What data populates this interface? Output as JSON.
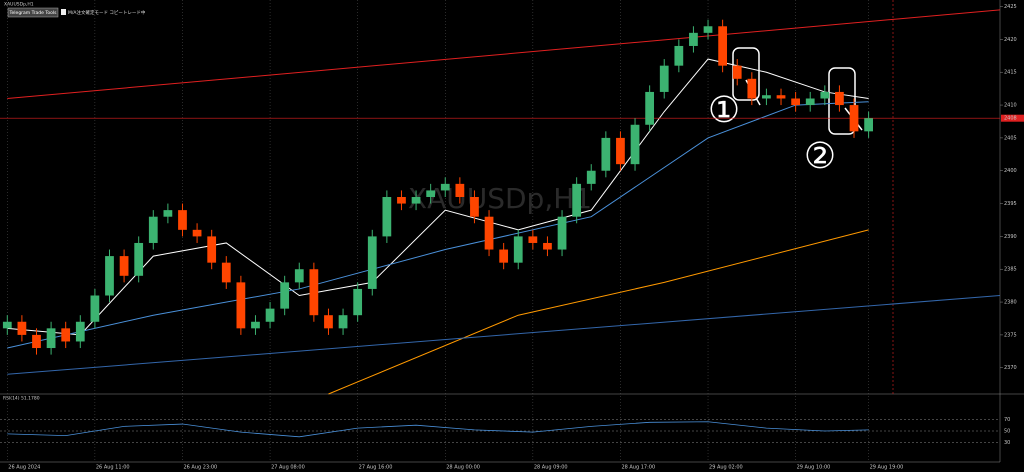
{
  "chart_data": {
    "type": "candlestick",
    "symbol_label": "XAUUSDp,H1",
    "watermark": "XAUUSDp,H1",
    "buttons": [
      "Telegram Trade Tools",
      "M/A注文確定モード コピートレード中"
    ],
    "annotations": [
      "①",
      "②"
    ],
    "xlim": [
      -0.5,
      68
    ],
    "ylim": [
      2366,
      2426
    ],
    "yticks": [
      2370,
      2375,
      2380,
      2385,
      2390,
      2395,
      2400,
      2405,
      2410,
      2415,
      2420,
      2425
    ],
    "xticks": [
      {
        "value": 0,
        "label": "26 Aug 2024"
      },
      {
        "value": 6,
        "label": "26 Aug 11:00"
      },
      {
        "value": 12,
        "label": "26 Aug 23:00"
      },
      {
        "value": 18,
        "label": "27 Aug 08:00"
      },
      {
        "value": 24,
        "label": "27 Aug 16:00"
      },
      {
        "value": 30,
        "label": "28 Aug 00:00"
      },
      {
        "value": 36,
        "label": "28 Aug 09:00"
      },
      {
        "value": 42,
        "label": "28 Aug 17:00"
      },
      {
        "value": 48,
        "label": "29 Aug 02:00"
      },
      {
        "value": 54,
        "label": "29 Aug 10:00"
      },
      {
        "value": 59,
        "label": "29 Aug 19:00"
      }
    ],
    "up_color": "#3cb371",
    "down_color": "#ff4500",
    "open": [
      2376,
      2377,
      2375,
      2373,
      2376,
      2374,
      2377,
      2381,
      2387,
      2384,
      2389,
      2393,
      2394,
      2391,
      2390,
      2386,
      2383,
      2376,
      2377,
      2379,
      2383,
      2385,
      2378,
      2376,
      2378,
      2382,
      2390,
      2396,
      2395,
      2396,
      2397,
      2398,
      2396,
      2393,
      2388,
      2386,
      2390,
      2389,
      2388,
      2393,
      2398,
      2400,
      2405,
      2401,
      2407,
      2412,
      2416,
      2419,
      2421,
      2422,
      2416,
      2414,
      2411,
      2411.5,
      2411,
      2410,
      2411,
      2412,
      2410,
      2406
    ],
    "close": [
      2377,
      2375,
      2373,
      2376,
      2374,
      2377,
      2381,
      2387,
      2384,
      2389,
      2393,
      2394,
      2391,
      2390,
      2386,
      2383,
      2376,
      2377,
      2379,
      2383,
      2385,
      2378,
      2376,
      2378,
      2382,
      2390,
      2396,
      2395,
      2396,
      2397,
      2398,
      2396,
      2393,
      2388,
      2386,
      2390,
      2389,
      2388,
      2393,
      2398,
      2400,
      2405,
      2401,
      2407,
      2412,
      2416,
      2419,
      2421,
      2422,
      2416,
      2414,
      2411,
      2411.5,
      2411,
      2410,
      2411,
      2412,
      2410,
      2406,
      2408
    ],
    "high": [
      2378,
      2378,
      2376,
      2377,
      2377,
      2378,
      2382,
      2388,
      2388,
      2390,
      2394,
      2395,
      2395,
      2392,
      2391,
      2387,
      2384,
      2378,
      2380,
      2384,
      2386,
      2386,
      2379,
      2379,
      2383,
      2391,
      2397,
      2397,
      2397,
      2398,
      2399,
      2399,
      2397,
      2394,
      2389,
      2391,
      2391,
      2390,
      2394,
      2399,
      2401,
      2406,
      2406,
      2408,
      2413,
      2417,
      2420,
      2422,
      2423,
      2423,
      2417,
      2415,
      2412.5,
      2412.5,
      2412,
      2412,
      2413,
      2413,
      2411,
      2409
    ],
    "low": [
      2375,
      2374,
      2372,
      2372,
      2373,
      2373,
      2376,
      2380,
      2383,
      2383,
      2388,
      2392,
      2390,
      2389,
      2385,
      2382,
      2375,
      2375,
      2376,
      2378,
      2382,
      2377,
      2375,
      2375,
      2377,
      2381,
      2389,
      2394,
      2394,
      2395,
      2396,
      2395,
      2392,
      2387,
      2385,
      2385,
      2388,
      2387,
      2387,
      2392,
      2397,
      2399,
      2400,
      2400,
      2406,
      2411,
      2415,
      2418,
      2420,
      2415,
      2413,
      2410,
      2410,
      2410,
      2409,
      2409,
      2410,
      2409,
      2405,
      2405
    ],
    "price_line": 2408,
    "overlays": [
      {
        "color": "#ffffff",
        "x": [
          0,
          5,
          10,
          15,
          20,
          25,
          30,
          35,
          40,
          45,
          48,
          52,
          56,
          59
        ],
        "values": [
          2376,
          2375,
          2387,
          2389,
          2381,
          2383,
          2394,
          2391,
          2394,
          2409,
          2417,
          2415,
          2412,
          2411
        ]
      },
      {
        "color": "#4a90d9",
        "x": [
          0,
          10,
          20,
          30,
          40,
          48,
          54,
          59
        ],
        "values": [
          2373,
          2378,
          2382,
          2388,
          2393,
          2405,
          2410,
          2410.5
        ]
      },
      {
        "color": "#ff9900",
        "x": [
          22,
          35,
          45,
          59
        ],
        "values": [
          2366,
          2378,
          2383,
          2391
        ]
      },
      {
        "color": "#e02020",
        "x": [
          0,
          68
        ],
        "values": [
          2411,
          2424.5
        ]
      },
      {
        "color": "#3366aa",
        "x": [
          0,
          68
        ],
        "values": [
          2369,
          2381
        ]
      }
    ],
    "rsi": {
      "label": "RSI(14) 51.1780",
      "color": "#4a90d9",
      "ylim": [
        0,
        100
      ],
      "yticks": [
        30,
        50,
        70
      ],
      "x": [
        0,
        4,
        8,
        12,
        16,
        20,
        24,
        28,
        32,
        36,
        40,
        44,
        48,
        52,
        56,
        59
      ],
      "values": [
        45,
        42,
        58,
        62,
        48,
        40,
        55,
        60,
        52,
        48,
        58,
        65,
        66,
        55,
        50,
        52
      ]
    }
  }
}
